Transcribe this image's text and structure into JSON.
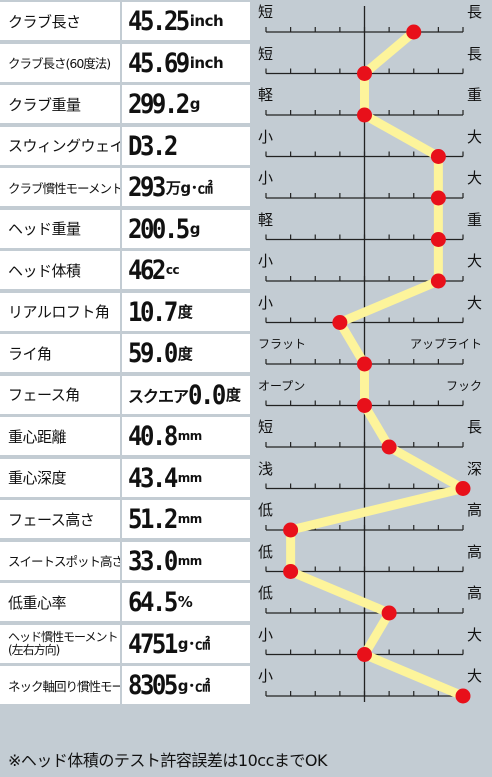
{
  "chart_data": {
    "type": "line",
    "center_tick": 4,
    "ticks_count": 9,
    "rows": [
      {
        "label": "クラブ長さ",
        "prefix": "",
        "value": "45.25",
        "unit": "inch",
        "left": "短",
        "right": "長",
        "position": 6
      },
      {
        "label": "クラブ長さ(60度法)",
        "prefix": "",
        "value": "45.69",
        "unit": "inch",
        "left": "短",
        "right": "長",
        "position": 4
      },
      {
        "label": "クラブ重量",
        "prefix": "",
        "value": "299.2",
        "unit": "g",
        "left": "軽",
        "right": "重",
        "position": 4
      },
      {
        "label": "スウィングウェイト",
        "prefix": "",
        "value": "D3.2",
        "unit": "",
        "left": "小",
        "right": "大",
        "position": 7
      },
      {
        "label": "クラブ慣性モーメント",
        "prefix": "",
        "value": "293",
        "unit": "万g･㎠",
        "left": "小",
        "right": "大",
        "position": 7
      },
      {
        "label": "ヘッド重量",
        "prefix": "",
        "value": "200.5",
        "unit": "g",
        "left": "軽",
        "right": "重",
        "position": 7
      },
      {
        "label": "ヘッド体積",
        "prefix": "",
        "value": "462",
        "unit": "cc",
        "left": "小",
        "right": "大",
        "position": 7
      },
      {
        "label": "リアルロフト角",
        "prefix": "",
        "value": "10.7",
        "unit": "度",
        "left": "小",
        "right": "大",
        "position": 3
      },
      {
        "label": "ライ角",
        "prefix": "",
        "value": "59.0",
        "unit": "度",
        "left": "フラット",
        "right": "アップライト",
        "position": 4
      },
      {
        "label": "フェース角",
        "prefix": "スクエア",
        "value": "0.0",
        "unit": "度",
        "left": "オープン",
        "right": "フック",
        "position": 4
      },
      {
        "label": "重心距離",
        "prefix": "",
        "value": "40.8",
        "unit": "mm",
        "left": "短",
        "right": "長",
        "position": 5
      },
      {
        "label": "重心深度",
        "prefix": "",
        "value": "43.4",
        "unit": "mm",
        "left": "浅",
        "right": "深",
        "position": 8
      },
      {
        "label": "フェース高さ",
        "prefix": "",
        "value": "51.2",
        "unit": "mm",
        "left": "低",
        "right": "高",
        "position": 1
      },
      {
        "label": "スイートスポット高さ",
        "prefix": "",
        "value": "33.0",
        "unit": "mm",
        "left": "低",
        "right": "高",
        "position": 1
      },
      {
        "label": "低重心率",
        "prefix": "",
        "value": "64.5",
        "unit": "%",
        "left": "低",
        "right": "高",
        "position": 5
      },
      {
        "label": "ヘッド慣性モーメント\n(左右方向)",
        "prefix": "",
        "value": "4751",
        "unit": "g･㎠",
        "left": "小",
        "right": "大",
        "position": 4
      },
      {
        "label": "ネック軸回り慣性モーメント",
        "prefix": "",
        "value": "8305",
        "unit": "g･㎠",
        "left": "小",
        "right": "大",
        "position": 8
      }
    ],
    "line_color": "#fdf49b",
    "marker_color": "#e8101a"
  },
  "footer": "※ヘッド体積のテスト許容誤差は10ccまでOK"
}
